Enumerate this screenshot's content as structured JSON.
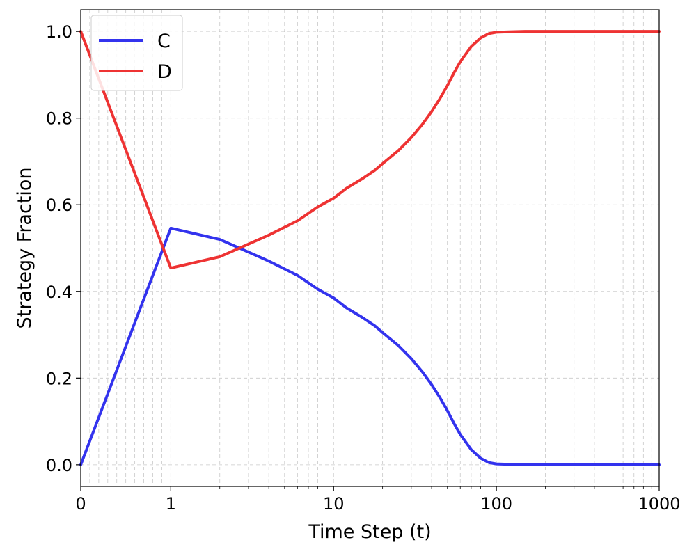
{
  "chart_data": {
    "type": "line",
    "title": "",
    "xlabel": "Time Step (t)",
    "ylabel": "Strategy Fraction",
    "xscale": "symlog",
    "xlim": [
      0,
      1000
    ],
    "ylim": [
      -0.05,
      1.05
    ],
    "x_ticks": [
      0,
      1,
      10,
      100,
      1000
    ],
    "x_tick_labels": [
      "0",
      "1",
      "10",
      "100",
      "1000"
    ],
    "y_ticks": [
      0.0,
      0.2,
      0.4,
      0.6,
      0.8,
      1.0
    ],
    "y_tick_labels": [
      "0.0",
      "0.2",
      "0.4",
      "0.6",
      "0.8",
      "1.0"
    ],
    "grid": true,
    "legend_position": "top-left",
    "series": [
      {
        "name": "C",
        "color": "#3333ee",
        "x": [
          0,
          1,
          2,
          4,
          6,
          8,
          10,
          12,
          15,
          18,
          20,
          25,
          30,
          35,
          40,
          45,
          50,
          55,
          60,
          70,
          80,
          90,
          100,
          120,
          150,
          200,
          300,
          500,
          1000
        ],
        "y": [
          0.0,
          0.546,
          0.52,
          0.47,
          0.437,
          0.405,
          0.385,
          0.362,
          0.34,
          0.32,
          0.305,
          0.275,
          0.245,
          0.215,
          0.185,
          0.155,
          0.125,
          0.095,
          0.07,
          0.035,
          0.015,
          0.005,
          0.002,
          0.001,
          0.0,
          0.0,
          0.0,
          0.0,
          0.0
        ]
      },
      {
        "name": "D",
        "color": "#ee3333",
        "x": [
          0,
          1,
          2,
          4,
          6,
          8,
          10,
          12,
          15,
          18,
          20,
          25,
          30,
          35,
          40,
          45,
          50,
          55,
          60,
          70,
          80,
          90,
          100,
          120,
          150,
          200,
          300,
          500,
          1000
        ],
        "y": [
          1.0,
          0.454,
          0.48,
          0.53,
          0.563,
          0.595,
          0.615,
          0.638,
          0.66,
          0.68,
          0.695,
          0.725,
          0.755,
          0.785,
          0.815,
          0.845,
          0.875,
          0.905,
          0.93,
          0.965,
          0.985,
          0.995,
          0.998,
          0.999,
          1.0,
          1.0,
          1.0,
          1.0,
          1.0
        ]
      }
    ]
  }
}
